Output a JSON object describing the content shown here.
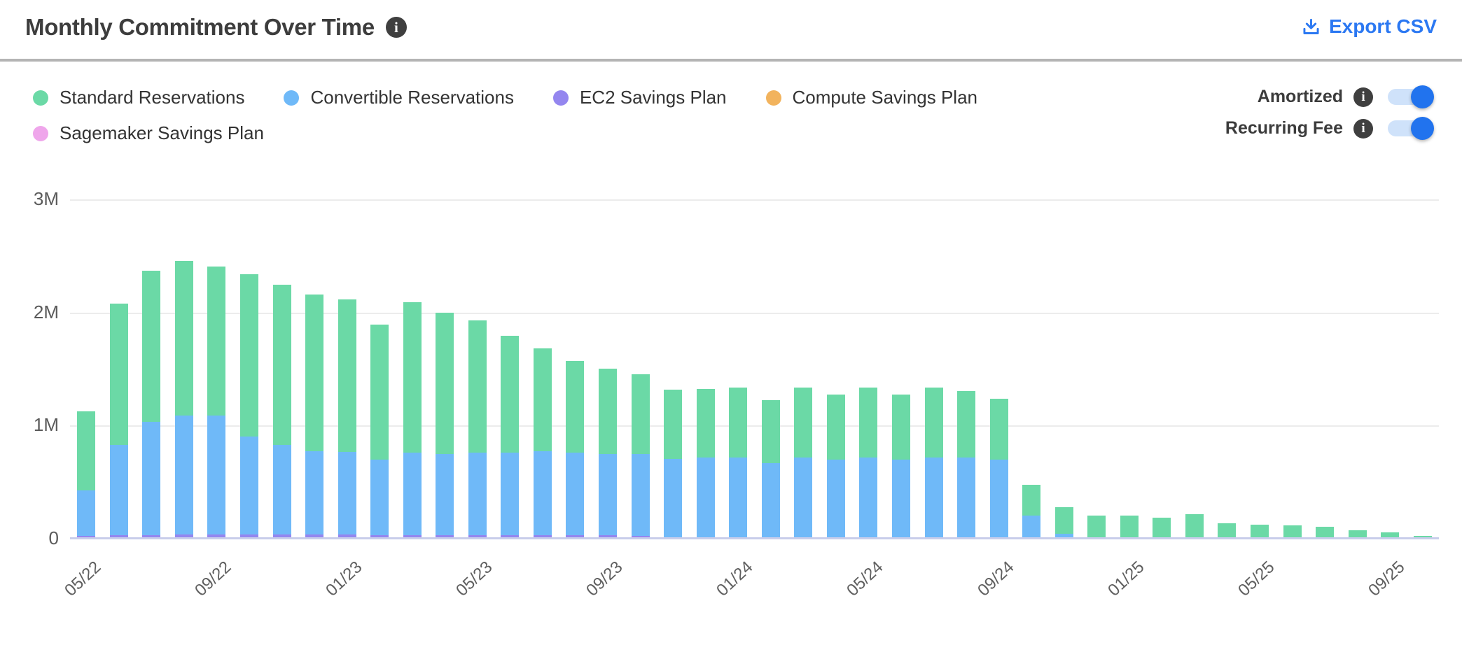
{
  "header": {
    "title": "Monthly Commitment Over Time",
    "export_label": "Export CSV"
  },
  "controls": {
    "legend": {
      "items": [
        {
          "label": "Standard Reservations",
          "color": "#6bd9a6"
        },
        {
          "label": "Convertible Reservations",
          "color": "#6fb9f8"
        },
        {
          "label": "EC2 Savings Plan",
          "color": "#9486ef"
        },
        {
          "label": "Compute Savings Plan",
          "color": "#f2b35d"
        },
        {
          "label": "Sagemaker Savings Plan",
          "color": "#efa6eb"
        }
      ]
    },
    "toggles": [
      {
        "label": "Amortized",
        "state": "on"
      },
      {
        "label": "Recurring Fee",
        "state": "on"
      }
    ]
  },
  "colors": {
    "accent_blue": "#2b78f2",
    "info_icon_bg": "#3f3f3f",
    "toggle_track": "#cfe2fa",
    "toggle_knob": "#2173ee",
    "gridline": "#ececec",
    "axis_line": "#c8cdeb",
    "divider": "#b4b4b4"
  },
  "chart_data": {
    "type": "bar",
    "stacked": true,
    "title": "Monthly Commitment Over Time",
    "xlabel": "",
    "ylabel": "",
    "unit": "millions (M)",
    "ylim_m": [
      0,
      3
    ],
    "y_ticks": [
      "0",
      "1M",
      "2M",
      "3M"
    ],
    "grid": true,
    "legend_position": "top-left",
    "x_labeled_every": 4,
    "categories": [
      "05/22",
      "06/22",
      "07/22",
      "08/22",
      "09/22",
      "10/22",
      "11/22",
      "12/22",
      "01/23",
      "02/23",
      "03/23",
      "04/23",
      "05/23",
      "06/23",
      "07/23",
      "08/23",
      "09/23",
      "10/23",
      "11/23",
      "12/23",
      "01/24",
      "02/24",
      "03/24",
      "04/24",
      "05/24",
      "06/24",
      "07/24",
      "08/24",
      "09/24",
      "10/24",
      "11/24",
      "12/24",
      "01/25",
      "02/25",
      "03/25",
      "04/25",
      "05/25",
      "06/25",
      "07/25",
      "08/25",
      "09/25",
      "10/25"
    ],
    "stack_order_bottom_to_top": [
      "EC2 Savings Plan",
      "Convertible Reservations",
      "Standard Reservations",
      "Compute Savings Plan",
      "Sagemaker Savings Plan"
    ],
    "series": [
      {
        "name": "Standard Reservations",
        "color": "#6bd9a6",
        "values_m": [
          0.7,
          1.25,
          1.34,
          1.37,
          1.32,
          1.43,
          1.42,
          1.38,
          1.35,
          1.19,
          1.33,
          1.25,
          1.17,
          1.03,
          0.91,
          0.81,
          0.75,
          0.71,
          0.61,
          0.61,
          0.62,
          0.56,
          0.62,
          0.58,
          0.62,
          0.58,
          0.62,
          0.59,
          0.54,
          0.27,
          0.23,
          0.2,
          0.2,
          0.18,
          0.21,
          0.13,
          0.12,
          0.11,
          0.1,
          0.07,
          0.05,
          0.02
        ]
      },
      {
        "name": "Convertible Reservations",
        "color": "#6fb9f8",
        "values_m": [
          0.4,
          0.8,
          1.0,
          1.05,
          1.05,
          0.87,
          0.79,
          0.74,
          0.73,
          0.67,
          0.73,
          0.72,
          0.73,
          0.73,
          0.74,
          0.73,
          0.72,
          0.72,
          0.7,
          0.71,
          0.71,
          0.66,
          0.71,
          0.69,
          0.71,
          0.69,
          0.71,
          0.71,
          0.69,
          0.2,
          0.04,
          0,
          0,
          0,
          0,
          0,
          0,
          0,
          0,
          0,
          0,
          0
        ]
      },
      {
        "name": "EC2 Savings Plan",
        "color": "#9486ef",
        "values_m": [
          0.02,
          0.025,
          0.025,
          0.03,
          0.03,
          0.03,
          0.03,
          0.03,
          0.03,
          0.025,
          0.025,
          0.025,
          0.025,
          0.025,
          0.025,
          0.025,
          0.025,
          0.02,
          0,
          0,
          0,
          0,
          0,
          0,
          0,
          0,
          0,
          0,
          0,
          0,
          0,
          0,
          0,
          0,
          0,
          0,
          0,
          0,
          0,
          0,
          0,
          0
        ]
      },
      {
        "name": "Compute Savings Plan",
        "color": "#f2b35d",
        "values_m": [
          0,
          0,
          0,
          0,
          0,
          0,
          0,
          0,
          0,
          0,
          0,
          0,
          0,
          0,
          0,
          0,
          0,
          0,
          0,
          0,
          0,
          0,
          0,
          0,
          0,
          0,
          0,
          0,
          0,
          0,
          0,
          0,
          0,
          0,
          0,
          0,
          0,
          0,
          0,
          0,
          0,
          0
        ]
      },
      {
        "name": "Sagemaker Savings Plan",
        "color": "#efa6eb",
        "values_m": [
          0,
          0,
          0,
          0,
          0,
          0,
          0,
          0,
          0,
          0,
          0,
          0,
          0,
          0,
          0,
          0,
          0,
          0,
          0,
          0,
          0,
          0,
          0,
          0,
          0,
          0,
          0,
          0,
          0,
          0,
          0,
          0,
          0,
          0,
          0,
          0,
          0,
          0,
          0,
          0,
          0,
          0
        ]
      }
    ]
  }
}
